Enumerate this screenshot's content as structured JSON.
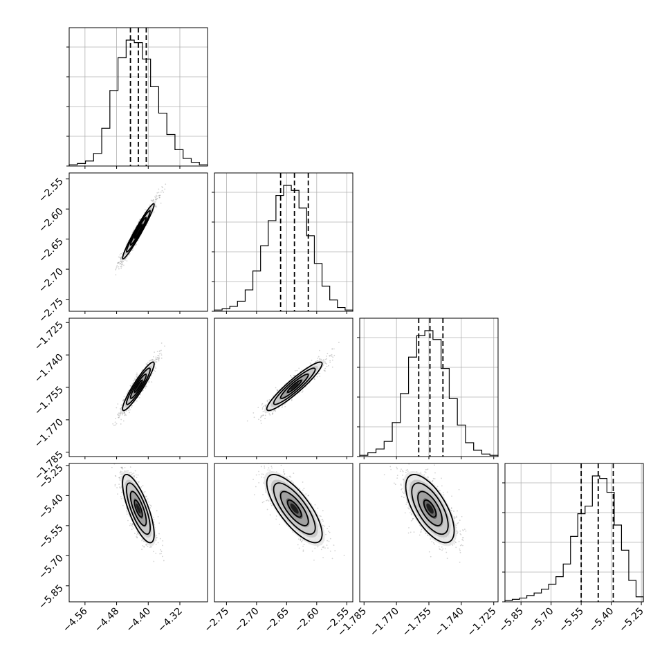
{
  "chart_data": {
    "type": "corner",
    "parameters": [
      {
        "ticks": [
          -4.56,
          -4.48,
          -4.4,
          -4.32
        ],
        "tick_labels": [
          "−4.56",
          "−4.48",
          "−4.40",
          "−4.32"
        ],
        "range": [
          -4.6,
          -4.25
        ],
        "median": -4.425,
        "q16": -4.445,
        "q84": -4.405,
        "sigma": 0.02
      },
      {
        "ticks": [
          -2.75,
          -2.7,
          -2.65,
          -2.6,
          -2.55
        ],
        "tick_labels": [
          "−2.75",
          "−2.70",
          "−2.65",
          "−2.60",
          "−2.55"
        ],
        "range": [
          -2.77,
          -2.54
        ],
        "median": -2.637,
        "q16": -2.66,
        "q84": -2.614,
        "sigma": 0.023
      },
      {
        "ticks": [
          -1.785,
          -1.77,
          -1.755,
          -1.74,
          -1.725
        ],
        "tick_labels": [
          "−1.785",
          "−1.770",
          "−1.755",
          "−1.740",
          "−1.725"
        ],
        "range": [
          -1.787,
          -1.723
        ],
        "median": -1.7545,
        "q16": -1.7597,
        "q84": -1.7485,
        "sigma": 0.0056
      },
      {
        "ticks": [
          -5.85,
          -5.7,
          -5.55,
          -5.4,
          -5.25
        ],
        "tick_labels": [
          "−5.85",
          "−5.70",
          "−5.55",
          "−5.40",
          "−5.25"
        ],
        "range": [
          -5.93,
          -5.24
        ],
        "median": -5.465,
        "q16": -5.55,
        "q84": -5.39,
        "sigma": 0.085
      }
    ],
    "correlations": [
      [
        1,
        0.97,
        0.93,
        -0.75
      ],
      [
        0.97,
        1,
        0.93,
        -0.75
      ],
      [
        0.93,
        0.93,
        1,
        -0.65
      ],
      [
        -0.75,
        -0.75,
        -0.65,
        1
      ]
    ],
    "histograms": [
      {
        "counts": [
          0.01,
          0.02,
          0.04,
          0.1,
          0.3,
          0.6,
          0.86,
          1.0,
          0.98,
          0.85,
          0.63,
          0.42,
          0.25,
          0.13,
          0.06,
          0.03,
          0.01
        ]
      },
      {
        "counts": [
          0.01,
          0.02,
          0.04,
          0.08,
          0.17,
          0.32,
          0.52,
          0.72,
          0.92,
          1.0,
          0.96,
          0.82,
          0.6,
          0.38,
          0.2,
          0.09,
          0.03,
          0.01
        ]
      },
      {
        "counts": [
          0.01,
          0.03,
          0.06,
          0.12,
          0.27,
          0.5,
          0.79,
          0.96,
          1.0,
          0.93,
          0.7,
          0.46,
          0.25,
          0.11,
          0.05,
          0.02,
          0.01
        ]
      },
      {
        "counts": [
          0.01,
          0.02,
          0.03,
          0.05,
          0.07,
          0.1,
          0.14,
          0.2,
          0.3,
          0.52,
          0.7,
          0.76,
          1.0,
          0.98,
          0.87,
          0.61,
          0.41,
          0.17,
          0.04
        ]
      }
    ],
    "grid": true,
    "colors": {
      "line": "#000000",
      "scatter": "#808080",
      "grid": "#b0b0b0"
    }
  }
}
